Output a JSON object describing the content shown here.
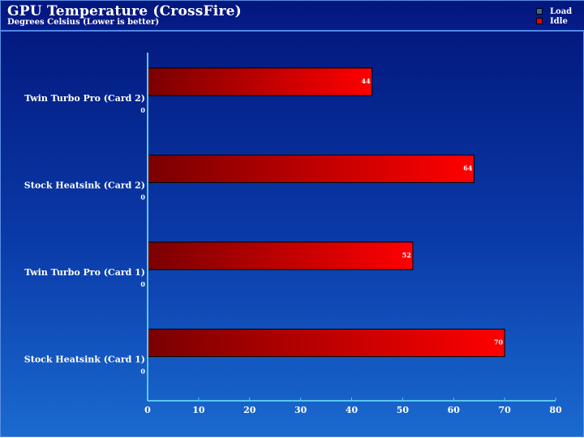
{
  "chart_data": {
    "type": "bar",
    "orientation": "horizontal",
    "title": "GPU Temperature (CrossFire)",
    "subtitle": "Degrees Celsius (Lower is better)",
    "categories": [
      "Twin Turbo Pro (Card 2)",
      "Stock Heatsink (Card 2)",
      "Twin Turbo Pro (Card 1)",
      "Stock Heatsink (Card 1)"
    ],
    "series": [
      {
        "name": "Load",
        "values": [
          0,
          0,
          0,
          0
        ],
        "color": "#2d6fa0"
      },
      {
        "name": "Idle",
        "values": [
          44,
          64,
          52,
          70
        ],
        "color": "#e80000"
      }
    ],
    "xlim": [
      0,
      80
    ],
    "xticks": [
      0,
      10,
      20,
      30,
      40,
      50,
      60,
      70,
      80
    ],
    "legend_position": "top-right",
    "grid": false
  },
  "colors": {
    "background": "#0a3aa8",
    "axis": "#5bc8f0",
    "bar_dark": "#7a0000",
    "bar_light": "#ff0000",
    "text": "#ffffff"
  }
}
